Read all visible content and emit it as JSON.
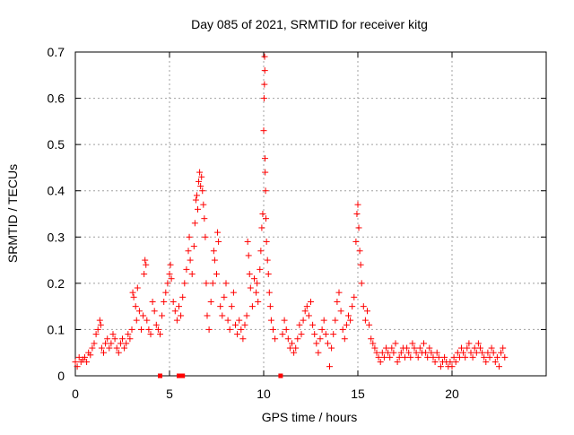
{
  "chart_data": {
    "type": "scatter",
    "title": "Day 085 of 2021, SRMTID for receiver kitg",
    "xlabel": "GPS time / hours",
    "ylabel": "SRMTID / TECUs",
    "xlim": [
      0,
      25
    ],
    "ylim": [
      0,
      0.7
    ],
    "x_ticks": [
      0,
      5,
      10,
      15,
      20
    ],
    "x_tick_labels": [
      "0",
      "5",
      "10",
      "15",
      "20"
    ],
    "y_ticks": [
      0,
      0.1,
      0.2,
      0.3,
      0.4,
      0.5,
      0.6,
      0.7
    ],
    "y_tick_labels": [
      "0",
      "0.1",
      "0.2",
      "0.3",
      "0.4",
      "0.5",
      "0.6",
      "0.7"
    ],
    "grid": true,
    "marker": "+",
    "color": "#ff0000",
    "gap_markers_x": [
      4.5,
      5.5,
      5.7,
      10.9
    ],
    "series": [
      {
        "name": "SRMTID",
        "points": [
          [
            0.0,
            0.03
          ],
          [
            0.1,
            0.02
          ],
          [
            0.2,
            0.04
          ],
          [
            0.3,
            0.03
          ],
          [
            0.4,
            0.035
          ],
          [
            0.5,
            0.04
          ],
          [
            0.6,
            0.03
          ],
          [
            0.7,
            0.05
          ],
          [
            0.8,
            0.045
          ],
          [
            0.9,
            0.06
          ],
          [
            1.0,
            0.07
          ],
          [
            1.1,
            0.09
          ],
          [
            1.2,
            0.1
          ],
          [
            1.3,
            0.12
          ],
          [
            1.35,
            0.11
          ],
          [
            1.4,
            0.06
          ],
          [
            1.5,
            0.05
          ],
          [
            1.6,
            0.07
          ],
          [
            1.7,
            0.08
          ],
          [
            1.8,
            0.06
          ],
          [
            1.9,
            0.07
          ],
          [
            2.0,
            0.09
          ],
          [
            2.1,
            0.08
          ],
          [
            2.2,
            0.06
          ],
          [
            2.3,
            0.05
          ],
          [
            2.4,
            0.07
          ],
          [
            2.5,
            0.08
          ],
          [
            2.6,
            0.06
          ],
          [
            2.7,
            0.07
          ],
          [
            2.8,
            0.09
          ],
          [
            2.9,
            0.08
          ],
          [
            3.0,
            0.1
          ],
          [
            3.05,
            0.18
          ],
          [
            3.1,
            0.17
          ],
          [
            3.2,
            0.15
          ],
          [
            3.25,
            0.12
          ],
          [
            3.3,
            0.19
          ],
          [
            3.4,
            0.14
          ],
          [
            3.5,
            0.1
          ],
          [
            3.6,
            0.13
          ],
          [
            3.65,
            0.22
          ],
          [
            3.7,
            0.25
          ],
          [
            3.75,
            0.24
          ],
          [
            3.8,
            0.12
          ],
          [
            3.9,
            0.1
          ],
          [
            4.0,
            0.09
          ],
          [
            4.1,
            0.16
          ],
          [
            4.2,
            0.14
          ],
          [
            4.3,
            0.11
          ],
          [
            4.4,
            0.1
          ],
          [
            4.5,
            0.09
          ],
          [
            4.6,
            0.13
          ],
          [
            4.7,
            0.16
          ],
          [
            4.8,
            0.18
          ],
          [
            4.9,
            0.2
          ],
          [
            5.0,
            0.22
          ],
          [
            5.05,
            0.24
          ],
          [
            5.1,
            0.21
          ],
          [
            5.2,
            0.16
          ],
          [
            5.3,
            0.14
          ],
          [
            5.4,
            0.12
          ],
          [
            5.5,
            0.15
          ],
          [
            5.6,
            0.13
          ],
          [
            5.7,
            0.17
          ],
          [
            5.8,
            0.2
          ],
          [
            5.9,
            0.23
          ],
          [
            6.0,
            0.27
          ],
          [
            6.05,
            0.3
          ],
          [
            6.1,
            0.25
          ],
          [
            6.2,
            0.22
          ],
          [
            6.3,
            0.28
          ],
          [
            6.35,
            0.33
          ],
          [
            6.4,
            0.38
          ],
          [
            6.45,
            0.39
          ],
          [
            6.5,
            0.36
          ],
          [
            6.55,
            0.42
          ],
          [
            6.6,
            0.44
          ],
          [
            6.65,
            0.41
          ],
          [
            6.7,
            0.43
          ],
          [
            6.75,
            0.4
          ],
          [
            6.8,
            0.37
          ],
          [
            6.85,
            0.34
          ],
          [
            6.9,
            0.3
          ],
          [
            6.95,
            0.2
          ],
          [
            7.0,
            0.13
          ],
          [
            7.1,
            0.1
          ],
          [
            7.2,
            0.16
          ],
          [
            7.3,
            0.2
          ],
          [
            7.35,
            0.27
          ],
          [
            7.4,
            0.25
          ],
          [
            7.5,
            0.22
          ],
          [
            7.55,
            0.31
          ],
          [
            7.6,
            0.29
          ],
          [
            7.7,
            0.15
          ],
          [
            7.8,
            0.13
          ],
          [
            7.9,
            0.17
          ],
          [
            8.0,
            0.2
          ],
          [
            8.1,
            0.12
          ],
          [
            8.2,
            0.1
          ],
          [
            8.3,
            0.15
          ],
          [
            8.4,
            0.18
          ],
          [
            8.5,
            0.11
          ],
          [
            8.6,
            0.09
          ],
          [
            8.7,
            0.12
          ],
          [
            8.8,
            0.1
          ],
          [
            8.9,
            0.08
          ],
          [
            9.0,
            0.11
          ],
          [
            9.1,
            0.13
          ],
          [
            9.15,
            0.29
          ],
          [
            9.2,
            0.26
          ],
          [
            9.25,
            0.22
          ],
          [
            9.3,
            0.19
          ],
          [
            9.4,
            0.15
          ],
          [
            9.5,
            0.21
          ],
          [
            9.6,
            0.18
          ],
          [
            9.65,
            0.2
          ],
          [
            9.7,
            0.16
          ],
          [
            9.8,
            0.23
          ],
          [
            9.85,
            0.27
          ],
          [
            9.9,
            0.32
          ],
          [
            9.95,
            0.35
          ],
          [
            10.0,
            0.53
          ],
          [
            10.02,
            0.6
          ],
          [
            10.04,
            0.63
          ],
          [
            10.05,
            0.69
          ],
          [
            10.06,
            0.66
          ],
          [
            10.07,
            0.47
          ],
          [
            10.08,
            0.44
          ],
          [
            10.1,
            0.4
          ],
          [
            10.12,
            0.34
          ],
          [
            10.15,
            0.29
          ],
          [
            10.2,
            0.25
          ],
          [
            10.25,
            0.22
          ],
          [
            10.3,
            0.18
          ],
          [
            10.35,
            0.15
          ],
          [
            10.4,
            0.12
          ],
          [
            10.5,
            0.1
          ],
          [
            10.6,
            0.08
          ],
          [
            11.0,
            0.09
          ],
          [
            11.1,
            0.12
          ],
          [
            11.2,
            0.1
          ],
          [
            11.3,
            0.08
          ],
          [
            11.4,
            0.06
          ],
          [
            11.5,
            0.07
          ],
          [
            11.6,
            0.05
          ],
          [
            11.7,
            0.06
          ],
          [
            11.8,
            0.08
          ],
          [
            11.9,
            0.11
          ],
          [
            12.0,
            0.09
          ],
          [
            12.1,
            0.12
          ],
          [
            12.2,
            0.14
          ],
          [
            12.3,
            0.15
          ],
          [
            12.4,
            0.13
          ],
          [
            12.5,
            0.16
          ],
          [
            12.6,
            0.11
          ],
          [
            12.7,
            0.09
          ],
          [
            12.8,
            0.07
          ],
          [
            12.9,
            0.05
          ],
          [
            13.0,
            0.08
          ],
          [
            13.1,
            0.1
          ],
          [
            13.2,
            0.12
          ],
          [
            13.3,
            0.09
          ],
          [
            13.4,
            0.07
          ],
          [
            13.5,
            0.02
          ],
          [
            13.6,
            0.06
          ],
          [
            13.7,
            0.09
          ],
          [
            13.8,
            0.12
          ],
          [
            13.9,
            0.16
          ],
          [
            14.0,
            0.18
          ],
          [
            14.1,
            0.14
          ],
          [
            14.2,
            0.1
          ],
          [
            14.3,
            0.08
          ],
          [
            14.4,
            0.11
          ],
          [
            14.5,
            0.13
          ],
          [
            14.6,
            0.12
          ],
          [
            14.7,
            0.15
          ],
          [
            14.8,
            0.17
          ],
          [
            14.9,
            0.29
          ],
          [
            14.95,
            0.35
          ],
          [
            15.0,
            0.37
          ],
          [
            15.05,
            0.32
          ],
          [
            15.1,
            0.27
          ],
          [
            15.15,
            0.24
          ],
          [
            15.2,
            0.2
          ],
          [
            15.3,
            0.15
          ],
          [
            15.4,
            0.12
          ],
          [
            15.5,
            0.14
          ],
          [
            15.6,
            0.11
          ],
          [
            15.7,
            0.08
          ],
          [
            15.8,
            0.07
          ],
          [
            15.9,
            0.06
          ],
          [
            16.0,
            0.05
          ],
          [
            16.1,
            0.04
          ],
          [
            16.2,
            0.03
          ],
          [
            16.3,
            0.05
          ],
          [
            16.4,
            0.04
          ],
          [
            16.5,
            0.06
          ],
          [
            16.6,
            0.05
          ],
          [
            16.7,
            0.04
          ],
          [
            16.8,
            0.06
          ],
          [
            16.9,
            0.05
          ],
          [
            17.0,
            0.07
          ],
          [
            17.1,
            0.03
          ],
          [
            17.2,
            0.04
          ],
          [
            17.3,
            0.05
          ],
          [
            17.4,
            0.06
          ],
          [
            17.5,
            0.04
          ],
          [
            17.6,
            0.06
          ],
          [
            17.7,
            0.05
          ],
          [
            17.8,
            0.04
          ],
          [
            17.9,
            0.07
          ],
          [
            18.0,
            0.06
          ],
          [
            18.1,
            0.05
          ],
          [
            18.2,
            0.04
          ],
          [
            18.3,
            0.06
          ],
          [
            18.4,
            0.05
          ],
          [
            18.5,
            0.07
          ],
          [
            18.6,
            0.05
          ],
          [
            18.7,
            0.04
          ],
          [
            18.8,
            0.06
          ],
          [
            18.9,
            0.05
          ],
          [
            19.0,
            0.04
          ],
          [
            19.1,
            0.03
          ],
          [
            19.2,
            0.05
          ],
          [
            19.3,
            0.04
          ],
          [
            19.4,
            0.02
          ],
          [
            19.5,
            0.03
          ],
          [
            19.6,
            0.04
          ],
          [
            19.7,
            0.03
          ],
          [
            19.8,
            0.02
          ],
          [
            19.9,
            0.03
          ],
          [
            20.0,
            0.02
          ],
          [
            20.1,
            0.04
          ],
          [
            20.2,
            0.03
          ],
          [
            20.3,
            0.05
          ],
          [
            20.4,
            0.04
          ],
          [
            20.5,
            0.06
          ],
          [
            20.6,
            0.05
          ],
          [
            20.7,
            0.04
          ],
          [
            20.8,
            0.06
          ],
          [
            20.9,
            0.07
          ],
          [
            21.0,
            0.05
          ],
          [
            21.1,
            0.04
          ],
          [
            21.2,
            0.06
          ],
          [
            21.3,
            0.05
          ],
          [
            21.4,
            0.07
          ],
          [
            21.5,
            0.06
          ],
          [
            21.6,
            0.05
          ],
          [
            21.7,
            0.04
          ],
          [
            21.8,
            0.03
          ],
          [
            21.9,
            0.05
          ],
          [
            22.0,
            0.04
          ],
          [
            22.1,
            0.06
          ],
          [
            22.2,
            0.05
          ],
          [
            22.3,
            0.03
          ],
          [
            22.4,
            0.04
          ],
          [
            22.5,
            0.02
          ],
          [
            22.6,
            0.05
          ],
          [
            22.7,
            0.06
          ],
          [
            22.8,
            0.04
          ]
        ]
      }
    ]
  }
}
